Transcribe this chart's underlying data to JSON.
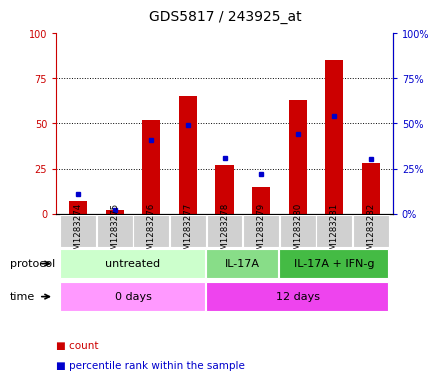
{
  "title": "GDS5817 / 243925_at",
  "samples": [
    "GSM1283274",
    "GSM1283275",
    "GSM1283276",
    "GSM1283277",
    "GSM1283278",
    "GSM1283279",
    "GSM1283280",
    "GSM1283281",
    "GSM1283282"
  ],
  "red_values": [
    7,
    2,
    52,
    65,
    27,
    15,
    63,
    85,
    28
  ],
  "blue_values": [
    11,
    2,
    41,
    49,
    31,
    22,
    44,
    54,
    30
  ],
  "red_color": "#cc0000",
  "blue_color": "#0000cc",
  "ylim": [
    0,
    100
  ],
  "grid_lines": [
    25,
    50,
    75
  ],
  "protocol_groups": [
    {
      "label": "untreated",
      "start": 0,
      "end": 4,
      "color": "#ccffcc"
    },
    {
      "label": "IL-17A",
      "start": 4,
      "end": 6,
      "color": "#88dd88"
    },
    {
      "label": "IL-17A + IFN-g",
      "start": 6,
      "end": 9,
      "color": "#44bb44"
    }
  ],
  "time_groups": [
    {
      "label": "0 days",
      "start": 0,
      "end": 4,
      "color": "#ff99ff"
    },
    {
      "label": "12 days",
      "start": 4,
      "end": 9,
      "color": "#ee44ee"
    }
  ],
  "protocol_label": "protocol",
  "time_label": "time",
  "legend_red": "count",
  "legend_blue": "percentile rank within the sample",
  "bar_width": 0.5,
  "bg_color": "#ffffff",
  "sample_bg_color": "#d0d0d0",
  "right_yaxis_color": "#0000cc",
  "left_yaxis_color": "#cc0000",
  "title_fontsize": 10,
  "tick_fontsize": 7,
  "label_fontsize": 8,
  "legend_fontsize": 7.5,
  "ytick_labels_left": [
    "0",
    "25",
    "50",
    "75",
    "100"
  ],
  "ytick_labels_right": [
    "0%",
    "25%",
    "50%",
    "75%",
    "100%"
  ],
  "ytick_values": [
    0,
    25,
    50,
    75,
    100
  ]
}
